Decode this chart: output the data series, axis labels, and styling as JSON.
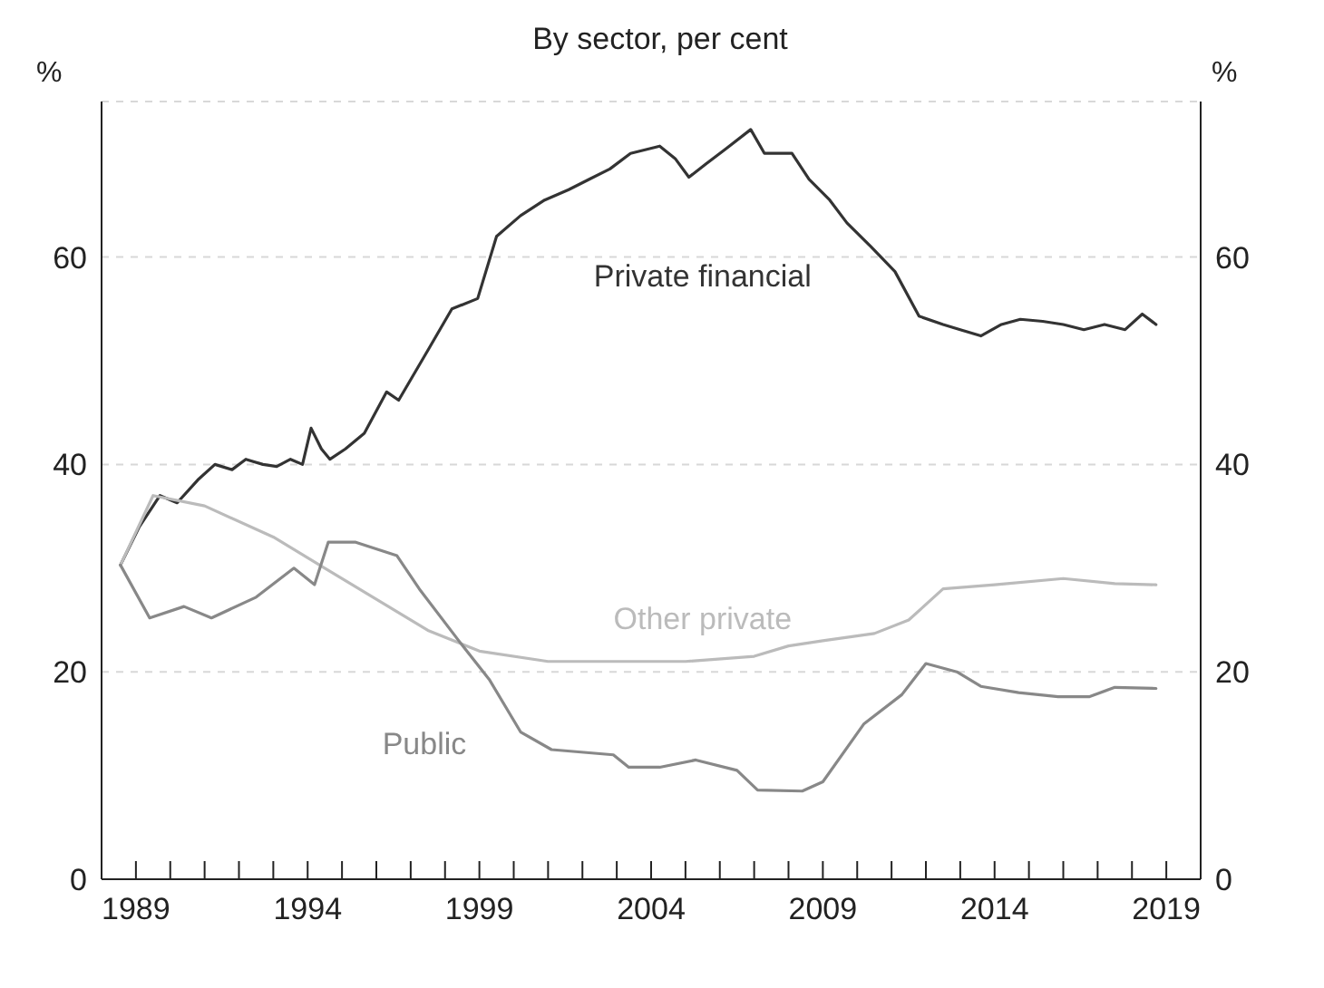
{
  "chart_data": {
    "type": "line",
    "title": "By sector, per cent",
    "ylabel": "%",
    "y2label": "%",
    "xlim": [
      1988,
      2020
    ],
    "xticks": [
      1989,
      {
        "value": 1990,
        "label": null
      },
      {
        "value": 1991,
        "label": null
      },
      {
        "value": 1992,
        "label": null
      },
      {
        "value": 1993,
        "label": null
      },
      1994,
      {
        "value": 1995,
        "label": null
      },
      {
        "value": 1996,
        "label": null
      },
      {
        "value": 1997,
        "label": null
      },
      {
        "value": 1998,
        "label": null
      },
      1999,
      {
        "value": 2000,
        "label": null
      },
      {
        "value": 2001,
        "label": null
      },
      {
        "value": 2002,
        "label": null
      },
      {
        "value": 2003,
        "label": null
      },
      2004,
      {
        "value": 2005,
        "label": null
      },
      {
        "value": 2006,
        "label": null
      },
      {
        "value": 2007,
        "label": null
      },
      {
        "value": 2008,
        "label": null
      },
      2009,
      {
        "value": 2010,
        "label": null
      },
      {
        "value": 2011,
        "label": null
      },
      {
        "value": 2012,
        "label": null
      },
      {
        "value": 2013,
        "label": null
      },
      2014,
      {
        "value": 2015,
        "label": null
      },
      {
        "value": 2016,
        "label": null
      },
      {
        "value": 2017,
        "label": null
      },
      {
        "value": 2018,
        "label": null
      },
      2019
    ],
    "ylim": [
      0,
      75
    ],
    "yticks": [
      0,
      20,
      40,
      60
    ],
    "y2lim": [
      0,
      75
    ],
    "y2ticks": [
      0,
      20,
      40,
      60
    ],
    "grid": "y",
    "legend": false,
    "marker": "none",
    "line_style": "solid",
    "series": [
      {
        "name": "Private financial",
        "color": "#333333",
        "x": [
          1988.55,
          1989.1,
          1989.7,
          1990.2,
          1990.8,
          1991.3,
          1991.8,
          1992.2,
          1992.7,
          1993.1,
          1993.5,
          1993.85,
          1994.1,
          1994.4,
          1994.65,
          1995.1,
          1995.65,
          1996.3,
          1996.65,
          1997.5,
          1998.2,
          1998.95,
          1999.5,
          2000.2,
          2000.9,
          2001.6,
          2002.2,
          2002.8,
          2003.4,
          2004.25,
          2004.7,
          2005.1,
          2005.6,
          2006.2,
          2006.9,
          2007.3,
          2008.1,
          2008.6,
          2009.2,
          2009.7,
          2010.4,
          2011.1,
          2011.8,
          2012.5,
          2013.0,
          2013.6,
          2014.2,
          2014.75,
          2015.4,
          2016.0,
          2016.6,
          2017.2,
          2017.8,
          2018.3,
          2018.7
        ],
        "values": [
          30.3,
          34,
          37,
          36.3,
          38.5,
          40,
          39.5,
          40.5,
          40,
          39.8,
          40.5,
          40,
          43.5,
          41.5,
          40.5,
          41.5,
          43,
          47,
          46.2,
          51,
          55,
          56,
          62,
          64,
          65.5,
          66.5,
          67.5,
          68.5,
          70,
          70.7,
          69.5,
          67.7,
          69,
          70.5,
          72.3,
          70,
          70,
          67.5,
          65.5,
          63.3,
          61,
          58.6,
          54.3,
          53.5,
          53,
          52.4,
          53.5,
          54,
          53.8,
          53.5,
          53,
          53.5,
          53,
          54.5,
          53.5
        ]
      },
      {
        "name": "Other private",
        "color": "#bbbbbb",
        "x": [
          1988.55,
          1989.5,
          1991,
          1993,
          1994.5,
          1996,
          1997.5,
          1999,
          2001,
          2003,
          2005,
          2007,
          2008,
          2009,
          2010.5,
          2011.5,
          2012.5,
          2014,
          2016,
          2017.5,
          2018.7
        ],
        "values": [
          30.3,
          37,
          36,
          33,
          30,
          27,
          24,
          22,
          21,
          21,
          21,
          21.5,
          22.5,
          23,
          23.7,
          25,
          28,
          28.4,
          29,
          28.5,
          28.4
        ]
      },
      {
        "name": "Public",
        "color": "#888888",
        "x": [
          1988.55,
          1989.4,
          1990.4,
          1991.2,
          1992.5,
          1993.6,
          1994.2,
          1994.6,
          1995.4,
          1996.6,
          1997.25,
          1998.4,
          1999.3,
          2000.2,
          2001.1,
          2002.9,
          2003.35,
          2004.25,
          2005.3,
          2006.5,
          2007.1,
          2008.4,
          2009.0,
          2010.2,
          2011.3,
          2012.0,
          2012.9,
          2013.6,
          2014.7,
          2015.85,
          2016.75,
          2017.5,
          2018.7
        ],
        "values": [
          30.3,
          25.2,
          26.3,
          25.2,
          27.2,
          30,
          28.4,
          32.5,
          32.5,
          31.2,
          28,
          23,
          19.2,
          14.2,
          12.5,
          12,
          10.8,
          10.8,
          11.5,
          10.5,
          8.6,
          8.5,
          9.4,
          15,
          17.8,
          20.8,
          20,
          18.6,
          18,
          17.6,
          17.6,
          18.5,
          18.4
        ]
      }
    ]
  }
}
